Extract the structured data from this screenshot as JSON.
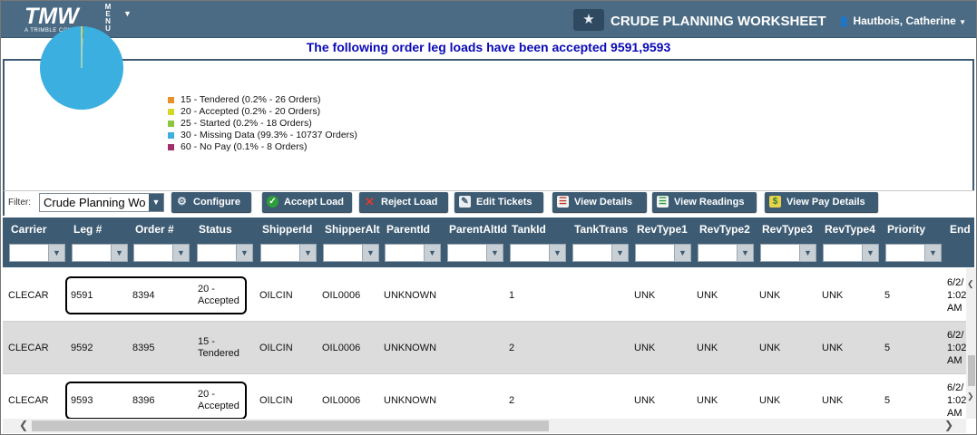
{
  "header": {
    "logo": "TMW",
    "logo_sub": "A TRIMBLE COMPANY",
    "menu_label": "MENU",
    "title": "CRUDE PLANNING WORKSHEET",
    "user": "Hautbois, Catherine"
  },
  "banner": "The following order leg loads have been accepted 9591,9593",
  "chart_data": {
    "type": "pie",
    "legend_placement": "right",
    "slices": [
      {
        "label": "15 - Tendered (0.2% - 26 Orders)",
        "percent": 0.2,
        "orders": 26,
        "color": "#e8902a"
      },
      {
        "label": "20 - Accepted (0.2% - 20 Orders)",
        "percent": 0.2,
        "orders": 20,
        "color": "#d4d62a"
      },
      {
        "label": "25 - Started (0.2% - 18 Orders)",
        "percent": 0.2,
        "orders": 18,
        "color": "#8cc63f"
      },
      {
        "label": "30 - Missing Data (99.3% - 10737 Orders)",
        "percent": 99.3,
        "orders": 10737,
        "color": "#3bb0e0"
      },
      {
        "label": "60 - No Pay (0.1% - 8 Orders)",
        "percent": 0.1,
        "orders": 8,
        "color": "#a0306a"
      }
    ]
  },
  "toolbar": {
    "filter_label": "Filter:",
    "filter_value": "Crude Planning Wo",
    "buttons": {
      "configure": "Configure",
      "accept": "Accept Load",
      "reject": "Reject Load",
      "edit": "Edit Tickets",
      "view_details": "View Details",
      "view_readings": "View Readings",
      "view_pay": "View Pay Details"
    }
  },
  "grid": {
    "columns": [
      "Carrier",
      "Leg #",
      "Order #",
      "Status",
      "ShipperId",
      "ShipperAlt",
      "ParentId",
      "ParentAltId",
      "TankId",
      "TankTrans",
      "RevType1",
      "RevType2",
      "RevType3",
      "RevType4",
      "Priority",
      "End"
    ],
    "rows": [
      {
        "carrier": "CLECAR",
        "leg": "9591",
        "order": "8394",
        "status1": "20 -",
        "status2": "Accepted",
        "shipper": "OILCIN",
        "shipper_alt": "OIL0006",
        "parent": "UNKNOWN",
        "parent_alt": "",
        "tank": "1",
        "tank_trans": "",
        "rev1": "UNK",
        "rev2": "UNK",
        "rev3": "UNK",
        "rev4": "UNK",
        "priority": "5",
        "end1": "6/2/",
        "end2": "1:02",
        "end3": "AM"
      },
      {
        "carrier": "CLECAR",
        "leg": "9592",
        "order": "8395",
        "status1": "15 -",
        "status2": "Tendered",
        "shipper": "OILCIN",
        "shipper_alt": "OIL0006",
        "parent": "UNKNOWN",
        "parent_alt": "",
        "tank": "2",
        "tank_trans": "",
        "rev1": "UNK",
        "rev2": "UNK",
        "rev3": "UNK",
        "rev4": "UNK",
        "priority": "5",
        "end1": "6/2/",
        "end2": "1:02",
        "end3": "AM"
      },
      {
        "carrier": "CLECAR",
        "leg": "9593",
        "order": "8396",
        "status1": "20 -",
        "status2": "Accepted",
        "shipper": "OILCIN",
        "shipper_alt": "OIL0006",
        "parent": "UNKNOWN",
        "parent_alt": "",
        "tank": "2",
        "tank_trans": "",
        "rev1": "UNK",
        "rev2": "UNK",
        "rev3": "UNK",
        "rev4": "UNK",
        "priority": "5",
        "end1": "6/2/",
        "end2": "1:02",
        "end3": "AM"
      }
    ]
  }
}
